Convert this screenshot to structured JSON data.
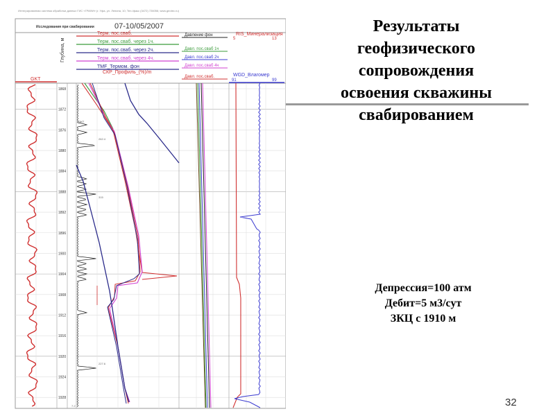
{
  "slide": {
    "title_lines": [
      "Результаты",
      "геофизического",
      "сопровождения",
      "освоения скважины",
      "свабированием"
    ],
    "info_lines": [
      "Депрессия=100 атм",
      "Дебит=5 м3/сут",
      "ЗКЦ с 1910 м"
    ],
    "page_number": "32"
  },
  "log": {
    "company_line": "Интегрированная система обработки данных ГИС «ГРАФИ» (г. Уфа, ул. Ленина, 10; Тел./факс (3472) 726056; www.geotec.ru)",
    "study_title": "Исследования при свабировании",
    "date": "07-10/05/2007",
    "depth_header": "Глубина, м",
    "gkt_label": "GKT",
    "temp_curves": [
      "Терм. пос.сваб.",
      "Терм. пос.сваб. через 1ч.",
      "Терм. пос.сваб. через 2ч.",
      "Терм. пос.сваб. через 4ч.",
      "TMF_Термом. фон"
    ],
    "profile_label": "СКР_Профиль_(%)/m",
    "pressure_curves": [
      "Давление фон",
      "Давл. пос.сваб 1ч",
      "Давл. пос.сваб 2ч",
      "Давл. пос.сваб 4ч",
      "Давл. пос.сваб."
    ],
    "ris_label": "RIS_Минерализация",
    "ris_scale": [
      "5",
      "13"
    ],
    "wgd_label": "WGD_Влагомер",
    "wgd_scale": [
      "91",
      "99"
    ],
    "depths": [
      "1868",
      "1872",
      "1876",
      "1880",
      "1884",
      "1888",
      "1892",
      "1896",
      "1900",
      "1904",
      "1908",
      "1912",
      "1916",
      "1920",
      "1924",
      "1928"
    ],
    "annotations": [
      "262.4",
      "315",
      "227.6",
      "7.2",
      "GKT"
    ],
    "colors": {
      "red": "#d03030",
      "green": "#3a9a3a",
      "navy": "#2a2a8a",
      "magenta": "#d040d0",
      "blue": "#3a3ad0",
      "black": "#222222"
    }
  }
}
